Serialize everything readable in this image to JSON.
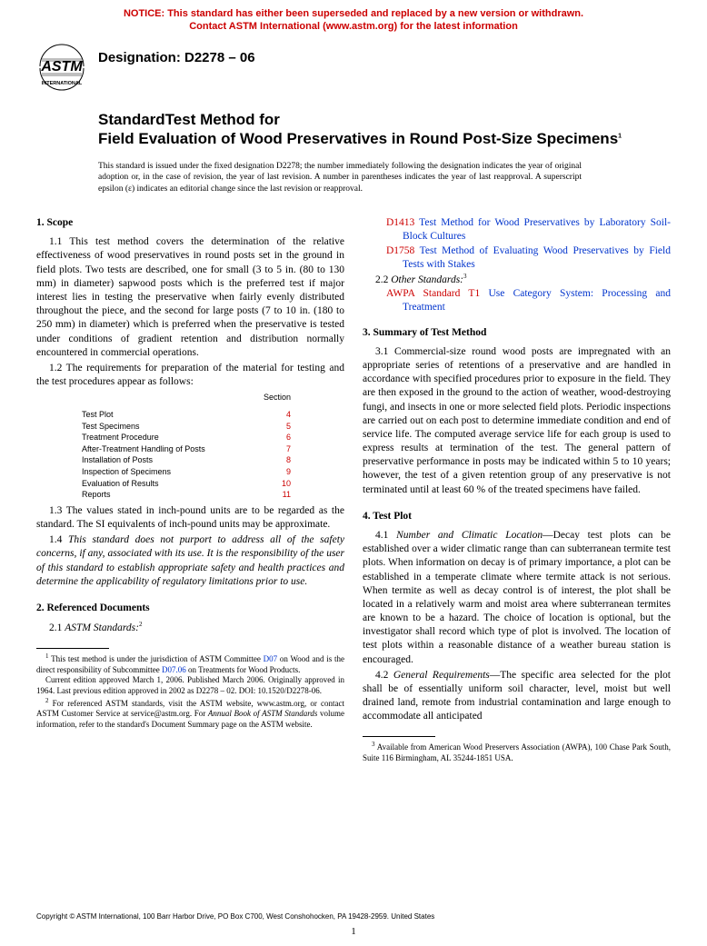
{
  "notice": {
    "line1": "NOTICE: This standard has either been superseded and replaced by a new version or withdrawn.",
    "line2": "Contact ASTM International (www.astm.org) for the latest information",
    "color": "#cc0000"
  },
  "logo": {
    "top": "ASTM",
    "bottom": "INTERNATIONAL"
  },
  "designation": "Designation: D2278 – 06",
  "title": {
    "prefix": "StandardTest Method for",
    "main": "Field Evaluation of Wood Preservatives in Round Post-Size Specimens",
    "sup": "1"
  },
  "issuance": "This standard is issued under the fixed designation D2278; the number immediately following the designation indicates the year of original adoption or, in the case of revision, the year of last revision. A number in parentheses indicates the year of last reapproval. A superscript epsilon (ε) indicates an editorial change since the last revision or reapproval.",
  "s1": {
    "head": "1. Scope",
    "p1": "1.1 This test method covers the determination of the relative effectiveness of wood preservatives in round posts set in the ground in field plots. Two tests are described, one for small (3 to 5 in. (80 to 130 mm) in diameter) sapwood posts which is the preferred test if major interest lies in testing the preservative when fairly evenly distributed throughout the piece, and the second for large posts (7 to 10 in. (180 to 250 mm) in diameter) which is preferred when the preservative is tested under conditions of gradient retention and distribution normally encountered in commercial operations.",
    "p2": "1.2 The requirements for preparation of the material for testing and the test procedures appear as follows:",
    "tableHead": "Section",
    "table": [
      {
        "label": "Test Plot",
        "section": "4"
      },
      {
        "label": "Test Specimens",
        "section": "5"
      },
      {
        "label": "Treatment Procedure",
        "section": "6"
      },
      {
        "label": "After-Treatment Handling of Posts",
        "section": "7"
      },
      {
        "label": "Installation of Posts",
        "section": "8"
      },
      {
        "label": "Inspection of Specimens",
        "section": "9"
      },
      {
        "label": "Evaluation of Results",
        "section": "10"
      },
      {
        "label": "Reports",
        "section": "11"
      }
    ],
    "p3": "1.3 The values stated in inch-pound units are to be regarded as the standard. The SI equivalents of inch-pound units may be approximate.",
    "p4": "1.4 This standard does not purport to address all of the safety concerns, if any, associated with its use. It is the responsibility of the user of this standard to establish appropriate safety and health practices and determine the applicability of regulatory limitations prior to use."
  },
  "s2": {
    "head": "2. Referenced Documents",
    "p1_pre": "2.1 ",
    "p1_it": "ASTM Standards:",
    "p1_sup": "2",
    "refs": [
      {
        "code": "D1413",
        "text": "Test Method for Wood Preservatives by Laboratory Soil-Block Cultures"
      },
      {
        "code": "D1758",
        "text": "Test Method of Evaluating Wood Preservatives by Field Tests with Stakes"
      }
    ],
    "p2_pre": "2.2 ",
    "p2_it": "Other Standards:",
    "p2_sup": "3",
    "ref2": {
      "code": "AWPA Standard T1",
      "text": "Use Category System: Processing and Treatment"
    }
  },
  "s3": {
    "head": "3. Summary of Test Method",
    "p1": "3.1 Commercial-size round wood posts are impregnated with an appropriate series of retentions of a preservative and are handled in accordance with specified procedures prior to exposure in the field. They are then exposed in the ground to the action of weather, wood-destroying fungi, and insects in one or more selected field plots. Periodic inspections are carried out on each post to determine immediate condition and end of service life. The computed average service life for each group is used to express results at termination of the test. The general pattern of preservative performance in posts may be indicated within 5 to 10 years; however, the test of a given retention group of any preservative is not terminated until at least 60 % of the treated specimens have failed."
  },
  "s4": {
    "head": "4. Test Plot",
    "p1_pre": "4.1 ",
    "p1_it": "Number and Climatic Location",
    "p1_body": "—Decay test plots can be established over a wider climatic range than can subterranean termite test plots. When information on decay is of primary importance, a plot can be established in a temperate climate where termite attack is not serious. When termite as well as decay control is of interest, the plot shall be located in a relatively warm and moist area where subterranean termites are known to be a hazard. The choice of location is optional, but the investigator shall record which type of plot is involved. The location of test plots within a reasonable distance of a weather bureau station is encouraged.",
    "p2_pre": "4.2 ",
    "p2_it": "General Requirements",
    "p2_body": "—The specific area selected for the plot shall be of essentially uniform soil character, level, moist but well drained land, remote from industrial contamination and large enough to accommodate all anticipated"
  },
  "footnotes": {
    "f1_a": " This test method is under the jurisdiction of ASTM Committee ",
    "f1_link1": "D07",
    "f1_b": " on Wood and is the direct responsibility of Subcommittee ",
    "f1_link2": "D07.06",
    "f1_c": " on Treatments for Wood Products.",
    "f1_d": "Current edition approved March 1, 2006. Published March 2006. Originally approved in 1964. Last previous edition approved in 2002 as D2278 – 02. DOI: 10.1520/D2278-06.",
    "f2_a": " For referenced ASTM standards, visit the ASTM website, www.astm.org, or contact ASTM Customer Service at service@astm.org. For ",
    "f2_it": "Annual Book of ASTM Standards",
    "f2_b": " volume information, refer to the standard's Document Summary page on the ASTM website.",
    "f3": " Available from American Wood Preservers Association (AWPA), 100 Chase Park South, Suite 116 Birmingham, AL 35244-1851 USA."
  },
  "copyright": "Copyright © ASTM International, 100 Barr Harbor Drive, PO Box C700, West Conshohocken, PA 19428-2959. United States",
  "pageNum": "1",
  "colors": {
    "red": "#cc0000",
    "blue": "#0033cc"
  }
}
